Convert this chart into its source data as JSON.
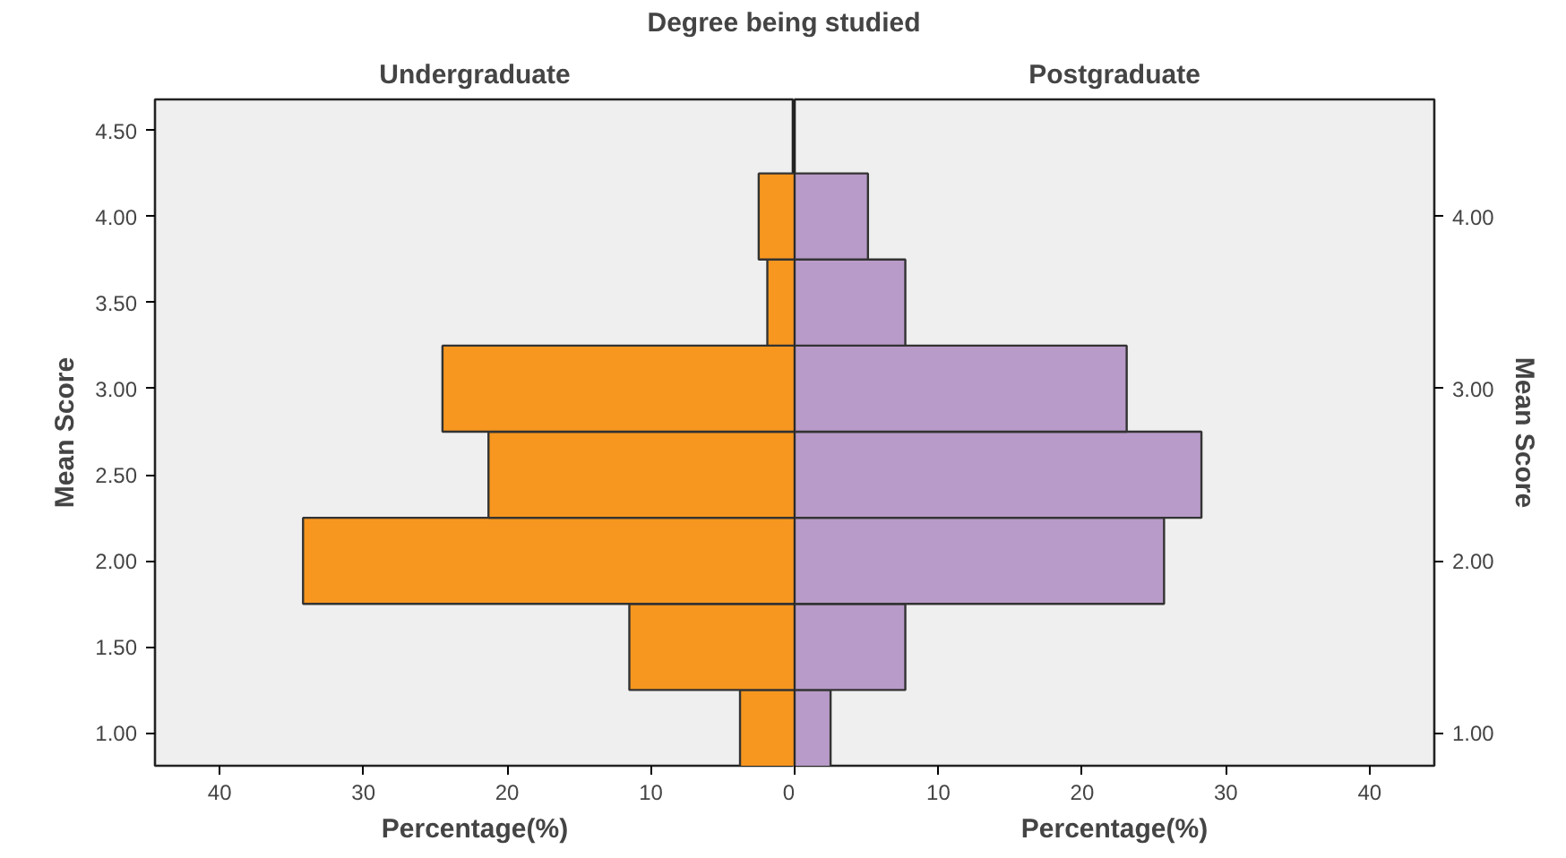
{
  "chart_data": [
    {
      "type": "histogram",
      "orientation": "horizontal",
      "title": "Undergraduate",
      "annotations": [
        "Degree being studied"
      ],
      "xlabel": "Percentage(%)",
      "ylabel": "Mean Score",
      "bins": [
        0.75,
        1.25,
        1.75,
        2.25,
        2.75,
        3.25,
        3.75,
        4.25
      ],
      "values": [
        3.8,
        11.5,
        34.2,
        21.3,
        24.5,
        1.9,
        2.5
      ],
      "color": "#f7971f",
      "xlim": [
        44.5,
        0
      ],
      "xticks": [
        40,
        30,
        20,
        10,
        0
      ],
      "ylim": [
        0.81,
        4.68
      ],
      "yticks": [
        {
          "value": 1,
          "label": "1.00"
        },
        {
          "value": 1.5,
          "label": "1.50"
        },
        {
          "value": 2,
          "label": "2.00"
        },
        {
          "value": 2.5,
          "label": "2.50"
        },
        {
          "value": 3,
          "label": "3.00"
        },
        {
          "value": 3.5,
          "label": "3.50"
        },
        {
          "value": 4,
          "label": "4.00"
        },
        {
          "value": 4.5,
          "label": "4.50"
        }
      ],
      "grid": false
    },
    {
      "type": "histogram",
      "orientation": "horizontal",
      "title": "Postgraduate",
      "xlabel": "Percentage(%)",
      "ylabel": "Mean Score",
      "bins": [
        0.75,
        1.25,
        1.75,
        2.25,
        2.75,
        3.25,
        3.75,
        4.25
      ],
      "values": [
        2.5,
        7.7,
        25.7,
        28.3,
        23.1,
        7.7,
        5.1
      ],
      "color": "#b89bc8",
      "xlim": [
        0,
        44.5
      ],
      "xticks": [
        {
          "value": 0,
          "label": null
        },
        10,
        20,
        30,
        40
      ],
      "ylim": [
        0.81,
        4.68
      ],
      "yticks": [
        {
          "value": 1,
          "label": "1.00"
        },
        {
          "value": 2,
          "label": "2.00"
        },
        {
          "value": 3,
          "label": "3.00"
        },
        {
          "value": 4,
          "label": "4.00"
        }
      ],
      "grid": false
    }
  ]
}
